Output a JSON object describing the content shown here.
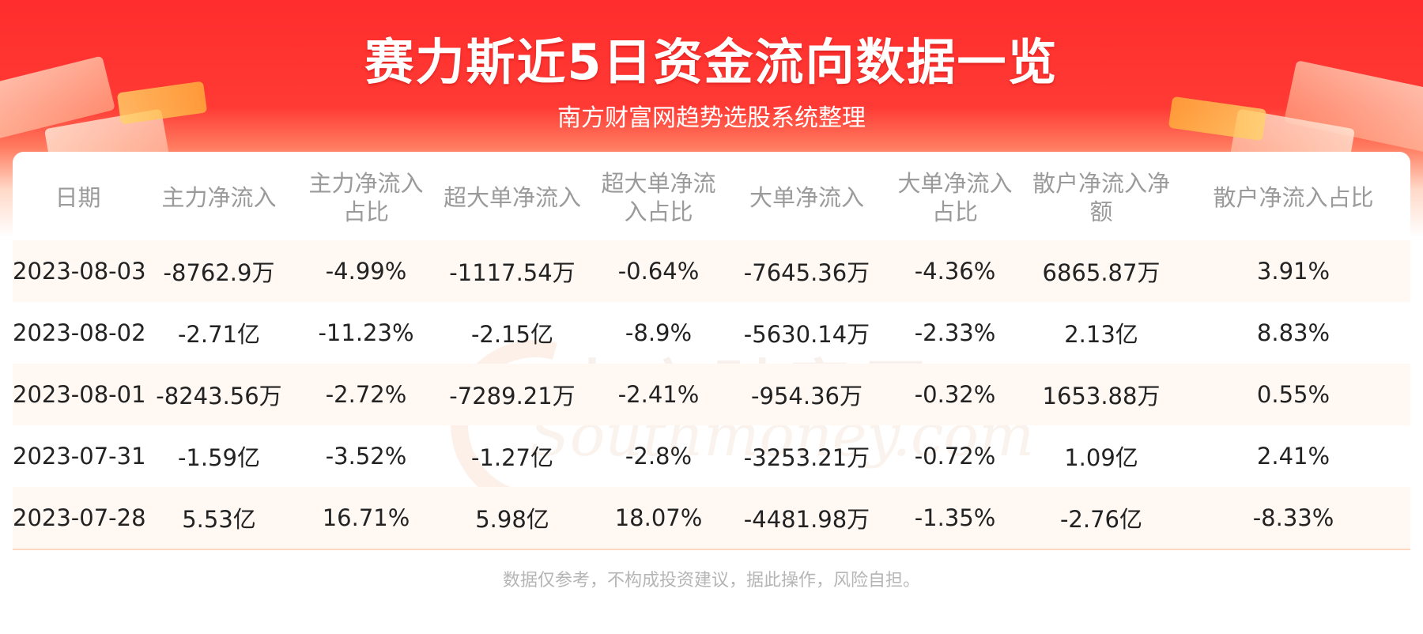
{
  "header": {
    "title": "赛力斯近5日资金流向数据一览",
    "subtitle": "南方财富网趋势选股系统整理"
  },
  "watermark": {
    "cn": "南方财富网",
    "en": "Southmoney.com"
  },
  "chart_data": {
    "type": "table",
    "columns": [
      "日期",
      "主力净流入",
      "主力净流入占比",
      "超大单净流入",
      "超大单净流入占比",
      "大单净流入",
      "大单净流入占比",
      "散户净流入净额",
      "散户净流入占比"
    ],
    "rows": [
      [
        "2023-08-03",
        "-8762.9万",
        "-4.99%",
        "-1117.54万",
        "-0.64%",
        "-7645.36万",
        "-4.36%",
        "6865.87万",
        "3.91%"
      ],
      [
        "2023-08-02",
        "-2.71亿",
        "-11.23%",
        "-2.15亿",
        "-8.9%",
        "-5630.14万",
        "-2.33%",
        "2.13亿",
        "8.83%"
      ],
      [
        "2023-08-01",
        "-8243.56万",
        "-2.72%",
        "-7289.21万",
        "-2.41%",
        "-954.36万",
        "-0.32%",
        "1653.88万",
        "0.55%"
      ],
      [
        "2023-07-31",
        "-1.59亿",
        "-3.52%",
        "-1.27亿",
        "-2.8%",
        "-3253.21万",
        "-0.72%",
        "1.09亿",
        "2.41%"
      ],
      [
        "2023-07-28",
        "5.53亿",
        "16.71%",
        "5.98亿",
        "18.07%",
        "-4481.98万",
        "-1.35%",
        "-2.76亿",
        "-8.33%"
      ]
    ]
  },
  "footer": {
    "disclaimer": "数据仅参考，不构成投资建议，据此操作，风险自担。"
  },
  "colors": {
    "banner_red": "#ff2d2d",
    "stripe": "#fff8f3",
    "header_text": "#9a9a9a"
  }
}
